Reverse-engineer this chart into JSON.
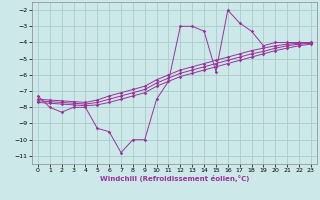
{
  "background_color": "#cce8e8",
  "grid_color": "#aacccc",
  "line_color": "#993399",
  "xlabel": "Windchill (Refroidissement éolien,°C)",
  "xlim": [
    -0.5,
    23.5
  ],
  "ylim": [
    -11.5,
    -1.5
  ],
  "yticks": [
    -11,
    -10,
    -9,
    -8,
    -7,
    -6,
    -5,
    -4,
    -3,
    -2
  ],
  "xticks": [
    0,
    1,
    2,
    3,
    4,
    5,
    6,
    7,
    8,
    9,
    10,
    11,
    12,
    13,
    14,
    15,
    16,
    17,
    18,
    19,
    20,
    21,
    22,
    23
  ],
  "line1_x": [
    0,
    1,
    2,
    3,
    4,
    5,
    6,
    7,
    8,
    9,
    10,
    11,
    12,
    13,
    14,
    15,
    16,
    17,
    18,
    19,
    20,
    21,
    22,
    23
  ],
  "line1_y": [
    -7.3,
    -8.0,
    -8.3,
    -8.0,
    -8.0,
    -9.3,
    -9.5,
    -10.8,
    -10.0,
    -10.0,
    -7.5,
    -6.4,
    -3.0,
    -3.0,
    -3.3,
    -5.8,
    -2.0,
    -2.8,
    -3.3,
    -4.2,
    -4.0,
    -4.0,
    -4.0,
    -4.0
  ],
  "line2_x": [
    0,
    1,
    2,
    3,
    4,
    5,
    6,
    7,
    8,
    9,
    10,
    11,
    12,
    13,
    14,
    15,
    16,
    17,
    18,
    19,
    20,
    21,
    22,
    23
  ],
  "line2_y": [
    -7.5,
    -7.55,
    -7.6,
    -7.65,
    -7.7,
    -7.55,
    -7.3,
    -7.1,
    -6.9,
    -6.7,
    -6.3,
    -6.0,
    -5.7,
    -5.5,
    -5.3,
    -5.1,
    -4.9,
    -4.7,
    -4.5,
    -4.35,
    -4.2,
    -4.1,
    -4.05,
    -4.0
  ],
  "line3_x": [
    0,
    1,
    2,
    3,
    4,
    5,
    6,
    7,
    8,
    9,
    10,
    11,
    12,
    13,
    14,
    15,
    16,
    17,
    18,
    19,
    20,
    21,
    22,
    23
  ],
  "line3_y": [
    -7.6,
    -7.65,
    -7.7,
    -7.75,
    -7.8,
    -7.7,
    -7.5,
    -7.3,
    -7.1,
    -6.9,
    -6.5,
    -6.2,
    -5.9,
    -5.7,
    -5.5,
    -5.3,
    -5.1,
    -4.9,
    -4.7,
    -4.55,
    -4.35,
    -4.2,
    -4.1,
    -4.05
  ],
  "line4_x": [
    0,
    1,
    2,
    3,
    4,
    5,
    6,
    7,
    8,
    9,
    10,
    11,
    12,
    13,
    14,
    15,
    16,
    17,
    18,
    19,
    20,
    21,
    22,
    23
  ],
  "line4_y": [
    -7.7,
    -7.75,
    -7.8,
    -7.85,
    -7.9,
    -7.85,
    -7.7,
    -7.5,
    -7.3,
    -7.1,
    -6.7,
    -6.4,
    -6.1,
    -5.9,
    -5.7,
    -5.5,
    -5.3,
    -5.1,
    -4.9,
    -4.7,
    -4.5,
    -4.35,
    -4.2,
    -4.1
  ],
  "tick_labelsize": 4.5,
  "xlabel_fontsize": 5.0,
  "lw": 0.7,
  "ms": 1.8
}
